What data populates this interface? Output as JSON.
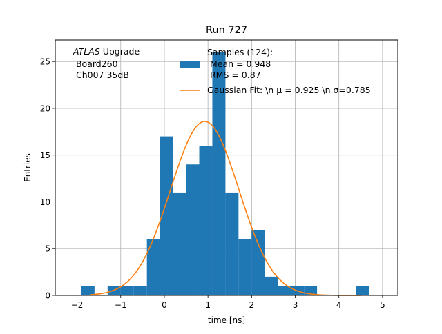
{
  "chart_data": {
    "type": "bar",
    "title": "Run 727",
    "xlabel": "time [ns]",
    "ylabel": "Entries",
    "xlim": [
      -2.5,
      5.35
    ],
    "ylim": [
      0,
      27.3
    ],
    "grid": true,
    "legend_placement": "top-center",
    "xticks": [
      -2,
      -1,
      0,
      1,
      2,
      3,
      4,
      5
    ],
    "yticks": [
      0,
      5,
      10,
      15,
      20,
      25
    ],
    "annotation": {
      "italic_prefix": "ATLAS",
      "prefix_suffix": " Upgrade",
      "line2": " Board260",
      "line3": " Ch007 35dB"
    },
    "histogram": {
      "name_lines": [
        "Samples (124):",
        " Mean = 0.948",
        " RMS = 0.87"
      ],
      "color": "#1f77b4",
      "bin_edges": [
        -1.9,
        -1.6,
        -1.3,
        -1.0,
        -0.7,
        -0.4,
        -0.1,
        0.2,
        0.5,
        0.8,
        1.1,
        1.4,
        1.7,
        2.0,
        2.3,
        2.6,
        2.9,
        3.2,
        3.5,
        3.8,
        4.1,
        4.4,
        4.7
      ],
      "counts": [
        1,
        0,
        1,
        1,
        1,
        6,
        17,
        11,
        14,
        16,
        26,
        11,
        6,
        7,
        2,
        1,
        1,
        1,
        0,
        0,
        0,
        1
      ]
    },
    "fit": {
      "name": "Gaussian Fit: \\n μ = 0.925 \\n σ=0.785",
      "color": "#ff7f0e",
      "type": "gaussian",
      "mu": 0.925,
      "sigma": 0.785,
      "amplitude": 18.6,
      "x_range": [
        -1.7,
        4.5
      ]
    }
  }
}
